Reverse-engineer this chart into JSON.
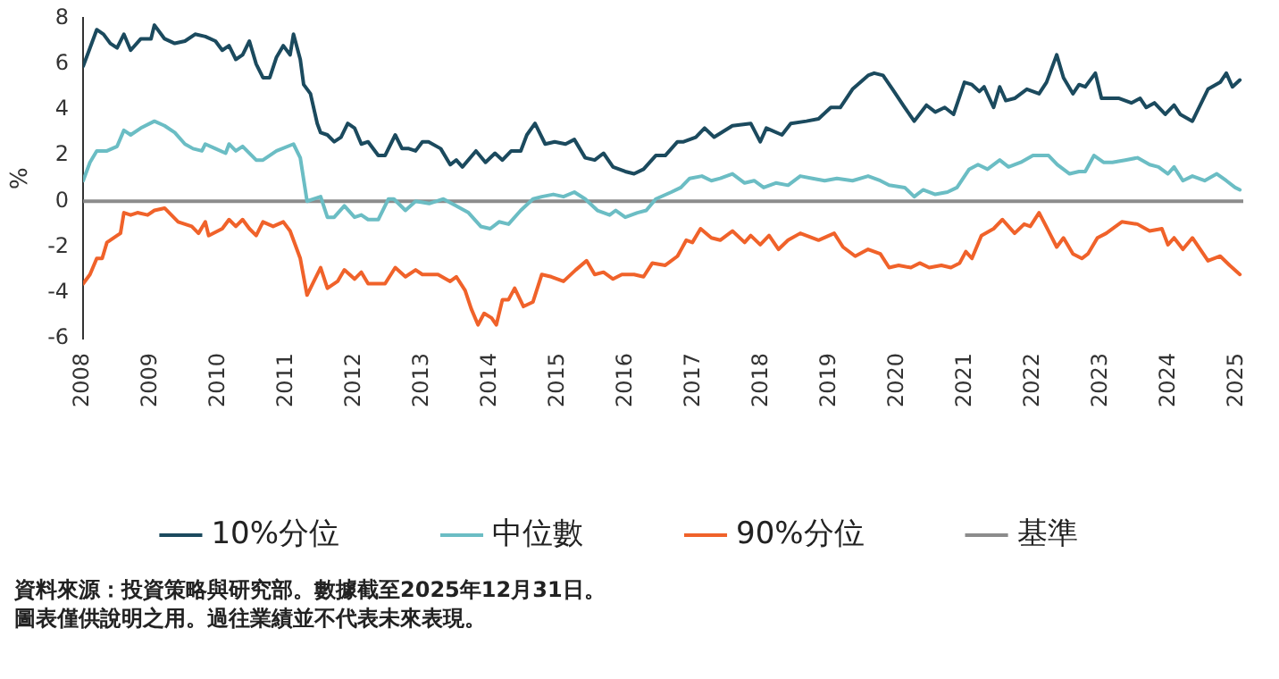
{
  "chart_data": {
    "type": "line",
    "ylabel": "%",
    "xlim": [
      2008,
      2025.1
    ],
    "xticks": [
      2008,
      2009,
      2010,
      2011,
      2012,
      2013,
      2014,
      2015,
      2016,
      2017,
      2018,
      2019,
      2020,
      2021,
      2022,
      2023,
      2024,
      2025
    ],
    "ylim": [
      -6,
      8
    ],
    "yticks": [
      -6,
      -4,
      -2,
      0,
      2,
      4,
      6,
      8
    ],
    "grid": false,
    "legend": "bottom",
    "marker": "none",
    "line_style": "solid",
    "series": [
      {
        "name": "10%分位",
        "color": "#1b4a5e",
        "x": [
          2008,
          2008.1,
          2008.2,
          2008.3,
          2008.4,
          2008.5,
          2008.6,
          2008.7,
          2008.85,
          2009,
          2009.05,
          2009.2,
          2009.35,
          2009.5,
          2009.65,
          2009.8,
          2009.95,
          2010.05,
          2010.15,
          2010.25,
          2010.35,
          2010.45,
          2010.55,
          2010.65,
          2010.75,
          2010.85,
          2010.95,
          2011.05,
          2011.1,
          2011.2,
          2011.25,
          2011.35,
          2011.45,
          2011.5,
          2011.6,
          2011.7,
          2011.8,
          2011.9,
          2012,
          2012.1,
          2012.2,
          2012.35,
          2012.45,
          2012.6,
          2012.7,
          2012.8,
          2012.9,
          2013,
          2013.09,
          2013.27,
          2013.41,
          2013.5,
          2013.59,
          2013.79,
          2013.93,
          2014.07,
          2014.18,
          2014.31,
          2014.45,
          2014.54,
          2014.66,
          2014.81,
          2014.95,
          2015.11,
          2015.24,
          2015.4,
          2015.54,
          2015.67,
          2015.81,
          2015.99,
          2016.12,
          2016.26,
          2016.44,
          2016.58,
          2016.76,
          2016.85,
          2017.03,
          2017.16,
          2017.3,
          2017.57,
          2017.84,
          2017.98,
          2018.07,
          2018.3,
          2018.43,
          2018.66,
          2018.84,
          2019.02,
          2019.16,
          2019.34,
          2019.57,
          2019.66,
          2019.79,
          2019.93,
          2020.11,
          2020.25,
          2020.43,
          2020.56,
          2020.7,
          2020.83,
          2020.99,
          2021.1,
          2021.21,
          2021.28,
          2021.42,
          2021.51,
          2021.6,
          2021.73,
          2021.91,
          2022.09,
          2022.2,
          2022.35,
          2022.45,
          2022.59,
          2022.68,
          2022.77,
          2022.92,
          2023.01,
          2023.27,
          2023.45,
          2023.58,
          2023.67,
          2023.79,
          2023.95,
          2024.08,
          2024.17,
          2024.35,
          2024.58,
          2024.76,
          2024.85,
          2024.94,
          2025.05
        ],
        "values": [
          5.9,
          6.7,
          7.5,
          7.3,
          6.9,
          6.7,
          7.3,
          6.6,
          7.1,
          7.1,
          7.7,
          7.1,
          6.9,
          7.0,
          7.3,
          7.2,
          7.0,
          6.6,
          6.8,
          6.2,
          6.4,
          7.0,
          6.0,
          5.4,
          5.4,
          6.3,
          6.8,
          6.4,
          7.3,
          6.2,
          5.1,
          4.7,
          3.4,
          3.0,
          2.9,
          2.6,
          2.8,
          3.4,
          3.2,
          2.5,
          2.6,
          2.0,
          2.0,
          2.9,
          2.3,
          2.3,
          2.2,
          2.6,
          2.6,
          2.3,
          1.6,
          1.8,
          1.5,
          2.2,
          1.7,
          2.1,
          1.8,
          2.2,
          2.2,
          2.9,
          3.4,
          2.5,
          2.6,
          2.5,
          2.7,
          1.9,
          1.8,
          2.1,
          1.5,
          1.3,
          1.2,
          1.4,
          2.0,
          2.0,
          2.6,
          2.6,
          2.8,
          3.2,
          2.8,
          3.3,
          3.4,
          2.6,
          3.2,
          2.9,
          3.4,
          3.5,
          3.6,
          4.1,
          4.1,
          4.9,
          5.5,
          5.6,
          5.5,
          4.9,
          4.1,
          3.5,
          4.2,
          3.9,
          4.1,
          3.8,
          5.2,
          5.1,
          4.8,
          5.0,
          4.1,
          5.0,
          4.4,
          4.5,
          4.9,
          4.7,
          5.2,
          6.4,
          5.4,
          4.7,
          5.1,
          5.0,
          5.6,
          4.5,
          4.5,
          4.3,
          4.5,
          4.1,
          4.3,
          3.8,
          4.2,
          3.8,
          3.5,
          4.9,
          5.2,
          5.6,
          5.0,
          5.3
        ]
      },
      {
        "name": "中位數",
        "color": "#6bbdc4",
        "x": [
          2008,
          2008.1,
          2008.2,
          2008.35,
          2008.5,
          2008.6,
          2008.7,
          2008.85,
          2009.05,
          2009.2,
          2009.35,
          2009.5,
          2009.62,
          2009.75,
          2009.8,
          2009.95,
          2010.1,
          2010.15,
          2010.25,
          2010.35,
          2010.55,
          2010.65,
          2010.85,
          2011.1,
          2011.2,
          2011.3,
          2011.4,
          2011.5,
          2011.6,
          2011.7,
          2011.85,
          2012,
          2012.1,
          2012.2,
          2012.35,
          2012.5,
          2012.58,
          2012.75,
          2012.9,
          2013.1,
          2013.31,
          2013.5,
          2013.68,
          2013.86,
          2014,
          2014.13,
          2014.27,
          2014.45,
          2014.63,
          2014.76,
          2014.93,
          2015.08,
          2015.24,
          2015.4,
          2015.58,
          2015.76,
          2015.85,
          2015.99,
          2016.17,
          2016.3,
          2016.44,
          2016.67,
          2016.81,
          2016.94,
          2017.12,
          2017.26,
          2017.39,
          2017.57,
          2017.75,
          2017.89,
          2018.03,
          2018.21,
          2018.39,
          2018.57,
          2018.75,
          2018.93,
          2019.11,
          2019.34,
          2019.57,
          2019.75,
          2019.88,
          2020.11,
          2020.25,
          2020.38,
          2020.56,
          2020.74,
          2020.88,
          2021.06,
          2021.19,
          2021.33,
          2021.51,
          2021.64,
          2021.82,
          2022,
          2022.23,
          2022.36,
          2022.54,
          2022.68,
          2022.77,
          2022.9,
          2023.04,
          2023.17,
          2023.36,
          2023.54,
          2023.72,
          2023.85,
          2023.99,
          2024.08,
          2024.21,
          2024.35,
          2024.53,
          2024.71,
          2024.85,
          2024.98,
          2025.05
        ],
        "values": [
          0.9,
          1.7,
          2.2,
          2.2,
          2.4,
          3.1,
          2.9,
          3.2,
          3.5,
          3.3,
          3.0,
          2.5,
          2.3,
          2.2,
          2.5,
          2.3,
          2.1,
          2.5,
          2.2,
          2.4,
          1.8,
          1.8,
          2.2,
          2.5,
          1.9,
          0.0,
          0.1,
          0.2,
          -0.7,
          -0.7,
          -0.2,
          -0.7,
          -0.6,
          -0.8,
          -0.8,
          0.1,
          0.1,
          -0.4,
          0.0,
          -0.1,
          0.1,
          -0.2,
          -0.5,
          -1.1,
          -1.2,
          -0.9,
          -1.0,
          -0.4,
          0.1,
          0.2,
          0.3,
          0.2,
          0.4,
          0.1,
          -0.4,
          -0.6,
          -0.4,
          -0.7,
          -0.5,
          -0.4,
          0.1,
          0.4,
          0.6,
          1.0,
          1.1,
          0.9,
          1.0,
          1.2,
          0.8,
          0.9,
          0.6,
          0.8,
          0.7,
          1.1,
          1.0,
          0.9,
          1.0,
          0.9,
          1.1,
          0.9,
          0.7,
          0.6,
          0.2,
          0.5,
          0.3,
          0.4,
          0.6,
          1.4,
          1.6,
          1.4,
          1.8,
          1.5,
          1.7,
          2.0,
          2.0,
          1.6,
          1.2,
          1.3,
          1.3,
          2.0,
          1.7,
          1.7,
          1.8,
          1.9,
          1.6,
          1.5,
          1.2,
          1.5,
          0.9,
          1.1,
          0.9,
          1.2,
          0.9,
          0.6,
          0.5
        ]
      },
      {
        "name": "90%分位",
        "color": "#f0622a",
        "x": [
          2008,
          2008.1,
          2008.2,
          2008.28,
          2008.35,
          2008.5,
          2008.55,
          2008.6,
          2008.7,
          2008.8,
          2008.95,
          2009.05,
          2009.2,
          2009.4,
          2009.5,
          2009.6,
          2009.7,
          2009.8,
          2009.85,
          2010.05,
          2010.15,
          2010.25,
          2010.35,
          2010.45,
          2010.55,
          2010.65,
          2010.8,
          2010.95,
          2011.05,
          2011.2,
          2011.3,
          2011.4,
          2011.5,
          2011.6,
          2011.75,
          2011.85,
          2012,
          2012.1,
          2012.2,
          2012.45,
          2012.6,
          2012.75,
          2012.9,
          2013,
          2013.09,
          2013.23,
          2013.41,
          2013.5,
          2013.63,
          2013.72,
          2013.82,
          2013.91,
          2014.02,
          2014.09,
          2014.18,
          2014.27,
          2014.36,
          2014.49,
          2014.63,
          2014.76,
          2014.9,
          2015.08,
          2015.26,
          2015.42,
          2015.54,
          2015.67,
          2015.81,
          2015.94,
          2016.12,
          2016.26,
          2016.39,
          2016.58,
          2016.76,
          2016.89,
          2016.98,
          2017.1,
          2017.26,
          2017.39,
          2017.57,
          2017.75,
          2017.84,
          2017.98,
          2018.11,
          2018.25,
          2018.39,
          2018.57,
          2018.84,
          2019.07,
          2019.2,
          2019.38,
          2019.57,
          2019.75,
          2019.88,
          2020.02,
          2020.2,
          2020.33,
          2020.47,
          2020.65,
          2020.79,
          2020.92,
          2021.01,
          2021.1,
          2021.24,
          2021.42,
          2021.55,
          2021.73,
          2021.87,
          2021.96,
          2022.09,
          2022.23,
          2022.35,
          2022.45,
          2022.59,
          2022.72,
          2022.81,
          2022.95,
          2023.08,
          2023.31,
          2023.54,
          2023.72,
          2023.9,
          2023.99,
          2024.08,
          2024.21,
          2024.35,
          2024.58,
          2024.76,
          2024.9,
          2025.05
        ],
        "values": [
          -3.6,
          -3.2,
          -2.5,
          -2.5,
          -1.8,
          -1.5,
          -1.4,
          -0.5,
          -0.6,
          -0.5,
          -0.6,
          -0.4,
          -0.3,
          -0.9,
          -1.0,
          -1.1,
          -1.4,
          -0.9,
          -1.5,
          -1.2,
          -0.8,
          -1.1,
          -0.8,
          -1.2,
          -1.5,
          -0.9,
          -1.1,
          -0.9,
          -1.3,
          -2.5,
          -4.1,
          -3.5,
          -2.9,
          -3.8,
          -3.5,
          -3.0,
          -3.4,
          -3.1,
          -3.6,
          -3.6,
          -2.9,
          -3.3,
          -3.0,
          -3.2,
          -3.2,
          -3.2,
          -3.5,
          -3.3,
          -3.9,
          -4.7,
          -5.4,
          -4.9,
          -5.1,
          -5.4,
          -4.3,
          -4.3,
          -3.8,
          -4.6,
          -4.4,
          -3.2,
          -3.3,
          -3.5,
          -3.0,
          -2.6,
          -3.2,
          -3.1,
          -3.4,
          -3.2,
          -3.2,
          -3.3,
          -2.7,
          -2.8,
          -2.4,
          -1.7,
          -1.8,
          -1.2,
          -1.6,
          -1.7,
          -1.3,
          -1.8,
          -1.5,
          -1.9,
          -1.5,
          -2.1,
          -1.7,
          -1.4,
          -1.7,
          -1.4,
          -2.0,
          -2.4,
          -2.1,
          -2.3,
          -2.9,
          -2.8,
          -2.9,
          -2.7,
          -2.9,
          -2.8,
          -2.9,
          -2.7,
          -2.2,
          -2.5,
          -1.5,
          -1.2,
          -0.8,
          -1.4,
          -1.0,
          -1.1,
          -0.5,
          -1.3,
          -2.0,
          -1.6,
          -2.3,
          -2.5,
          -2.3,
          -1.6,
          -1.4,
          -0.9,
          -1.0,
          -1.3,
          -1.2,
          -1.9,
          -1.6,
          -2.1,
          -1.6,
          -2.6,
          -2.4,
          -2.8,
          -3.2
        ]
      },
      {
        "name": "基準",
        "color": "#8c8c8c",
        "x": [
          2008,
          2025.1
        ],
        "values": [
          0,
          0
        ]
      }
    ],
    "annotations": [
      "資料來源：投資策略與研究部。數據截至2025年12月31日。",
      "圖表僅供說明之用。過往業績並不代表未來表現。"
    ]
  }
}
